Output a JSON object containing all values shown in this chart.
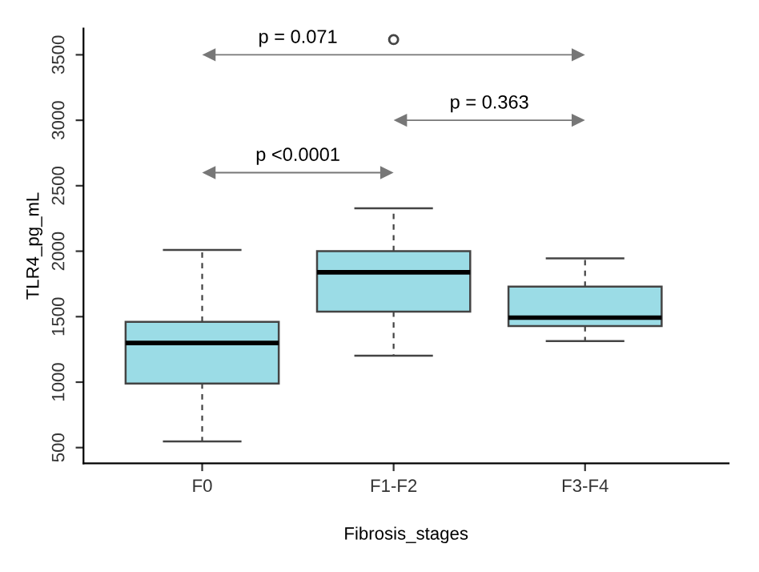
{
  "chart_data": {
    "type": "box",
    "xlabel": "Fibrosis_stages",
    "ylabel": "TLR4_pg_mL",
    "categories": [
      "F0",
      "F1-F2",
      "F3-F4"
    ],
    "boxes": [
      {
        "low": 547,
        "q1": 990,
        "median": 1299,
        "q3": 1461,
        "high": 2010
      },
      {
        "low": 1202,
        "q1": 1539,
        "median": 1839,
        "q3": 2001,
        "high": 2328,
        "outliers": [
          3616
        ]
      },
      {
        "low": 1313,
        "q1": 1428,
        "median": 1493,
        "q3": 1729,
        "high": 1946
      }
    ],
    "color": "#9bdce6",
    "ylim": [
      380,
      3700
    ],
    "yticks": [
      500,
      1000,
      1500,
      2000,
      2500,
      3000,
      3500
    ],
    "annotations": [
      "p = 0.071",
      "p <0.0001",
      "p = 0.363"
    ],
    "grid": false,
    "legend": false
  }
}
